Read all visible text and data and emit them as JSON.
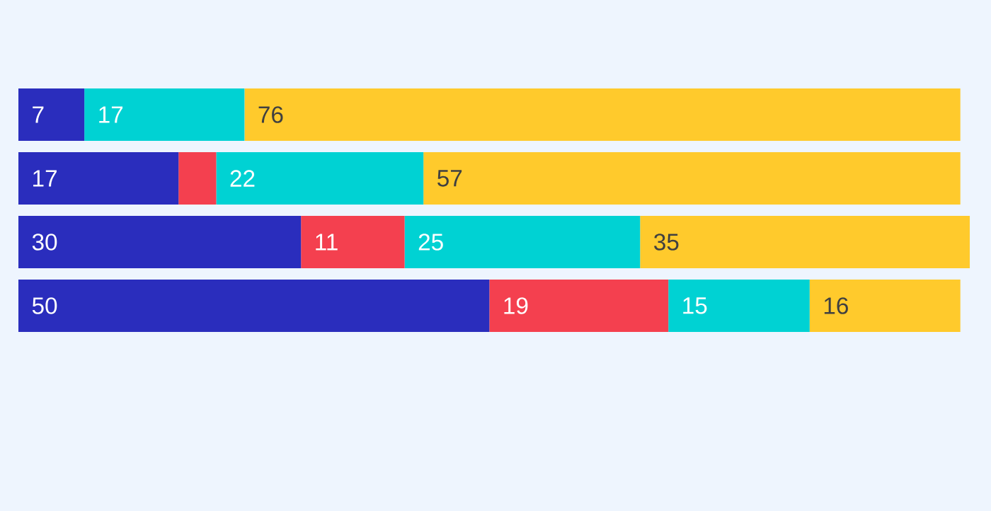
{
  "chart_data": {
    "type": "bar",
    "orientation": "horizontal",
    "stacked": true,
    "categories": [
      null,
      null,
      null,
      null
    ],
    "xlim": [
      0,
      101
    ],
    "tick_labels": false,
    "series": [
      {
        "color": "#2a2dbd",
        "values": [
          7,
          17,
          30,
          50
        ],
        "value_labels": [
          "7",
          "17",
          "30",
          "50"
        ]
      },
      {
        "color": "#f4404f",
        "values": [
          0,
          4,
          11,
          19
        ],
        "value_labels": [
          null,
          null,
          "11",
          "19"
        ]
      },
      {
        "color": "#00d2d3",
        "values": [
          17,
          22,
          25,
          15
        ],
        "value_labels": [
          "17",
          "22",
          "25",
          "15"
        ]
      },
      {
        "color": "#ffca2c",
        "values": [
          76,
          57,
          35,
          16
        ],
        "value_labels": [
          "76",
          "57",
          "35",
          "16"
        ]
      }
    ]
  }
}
